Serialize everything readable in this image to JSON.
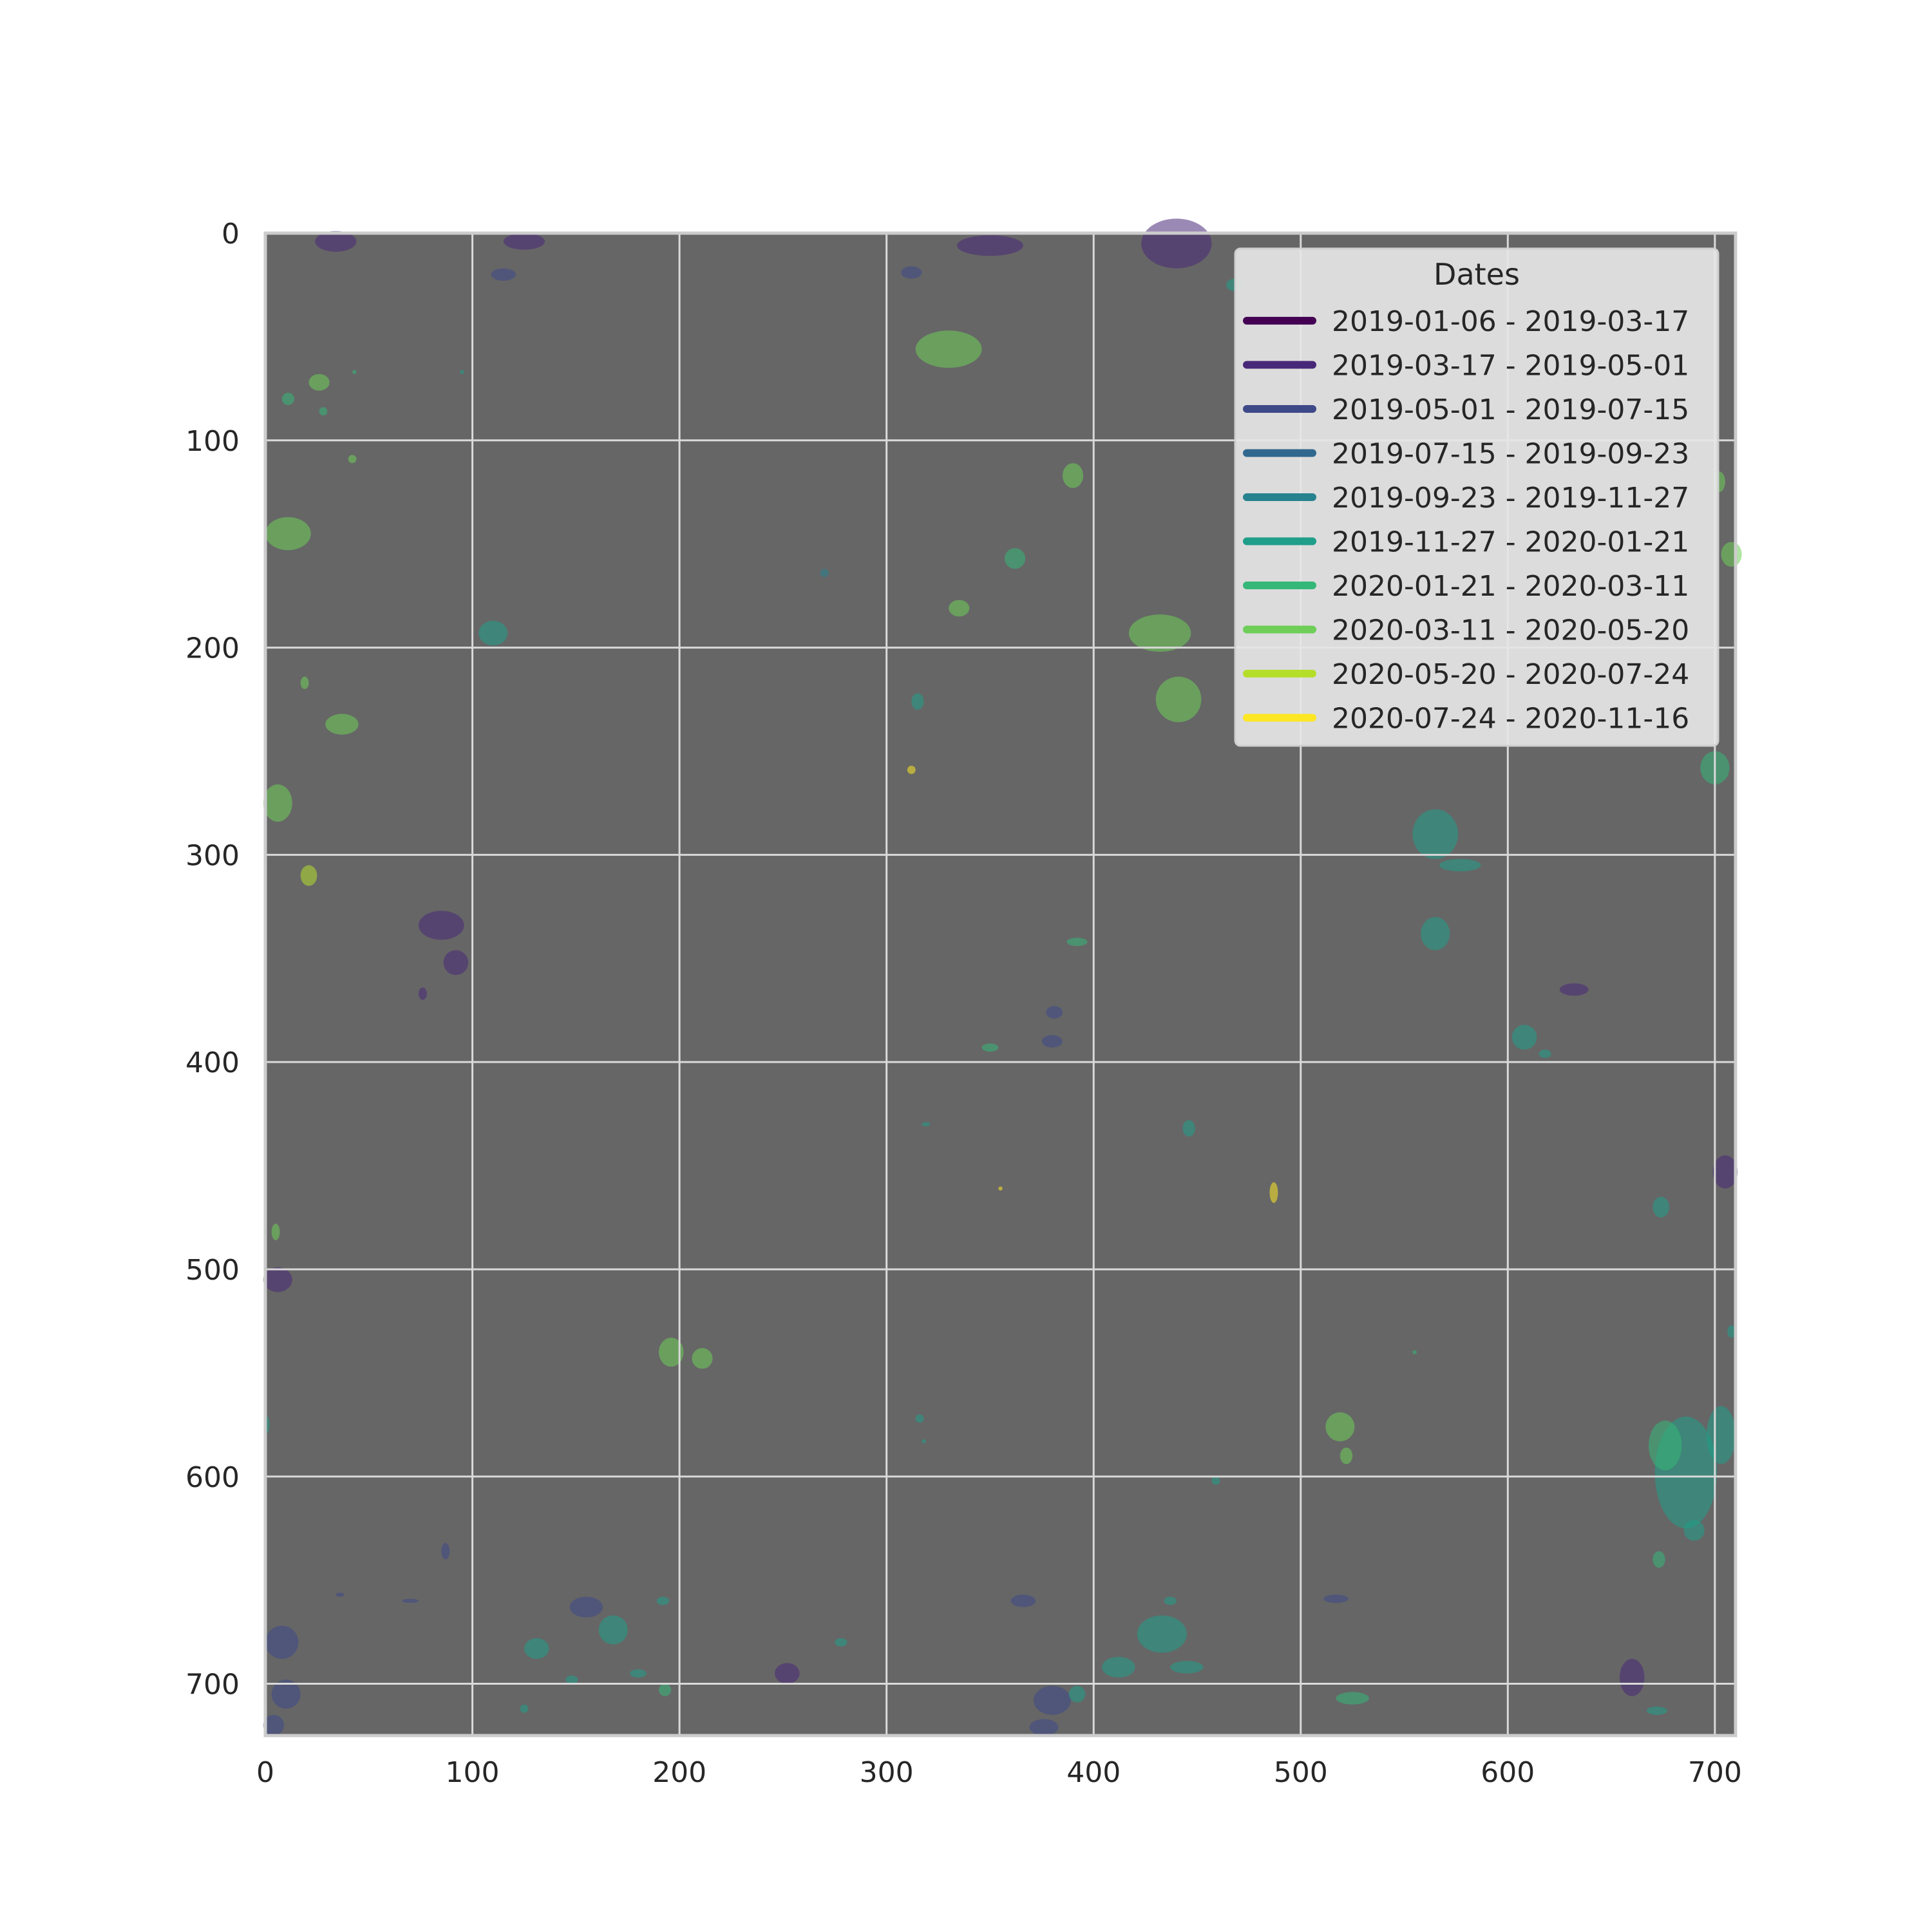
{
  "chart_data": {
    "type": "heatmap",
    "title": "",
    "xlabel": "",
    "ylabel": "",
    "xlim": [
      0,
      710
    ],
    "ylim": [
      725,
      0
    ],
    "x_ticks": [
      "0",
      "100",
      "200",
      "300",
      "400",
      "500",
      "600",
      "700"
    ],
    "y_ticks": [
      "0",
      "100",
      "200",
      "300",
      "400",
      "500",
      "600",
      "700"
    ],
    "grid": true,
    "background_color": "#666666",
    "legend": {
      "title": "Dates",
      "placement": "top-right",
      "entries": [
        {
          "label": "2019-01-06 - 2019-03-17",
          "color": "#440154"
        },
        {
          "label": "2019-03-17 - 2019-05-01",
          "color": "#482878"
        },
        {
          "label": "2019-05-01 - 2019-07-15",
          "color": "#3e4989"
        },
        {
          "label": "2019-07-15 - 2019-09-23",
          "color": "#31688e"
        },
        {
          "label": "2019-09-23 - 2019-11-27",
          "color": "#26828e"
        },
        {
          "label": "2019-11-27 - 2020-01-21",
          "color": "#1f9e89"
        },
        {
          "label": "2020-01-21 - 2020-03-11",
          "color": "#35b779"
        },
        {
          "label": "2020-03-11 - 2020-05-20",
          "color": "#6ece58"
        },
        {
          "label": "2020-05-20 - 2020-07-24",
          "color": "#b5de2b"
        },
        {
          "label": "2020-07-24 - 2020-11-16",
          "color": "#fde725"
        }
      ]
    },
    "patches": [
      {
        "x": 440,
        "y": 5,
        "rx": 17,
        "ry": 12,
        "cls": 1
      },
      {
        "x": 34,
        "y": 4,
        "rx": 10,
        "ry": 5,
        "cls": 1
      },
      {
        "x": 125,
        "y": 4,
        "rx": 10,
        "ry": 4,
        "cls": 1
      },
      {
        "x": 115,
        "y": 20,
        "rx": 6,
        "ry": 3,
        "cls": 2
      },
      {
        "x": 350,
        "y": 6,
        "rx": 16,
        "ry": 5,
        "cls": 1
      },
      {
        "x": 312,
        "y": 19,
        "rx": 5,
        "ry": 3,
        "cls": 2
      },
      {
        "x": 330,
        "y": 56,
        "rx": 16,
        "ry": 9,
        "cls": 7
      },
      {
        "x": 26,
        "y": 72,
        "rx": 5,
        "ry": 4,
        "cls": 7
      },
      {
        "x": 11,
        "y": 80,
        "rx": 3,
        "ry": 3,
        "cls": 6
      },
      {
        "x": 28,
        "y": 86,
        "rx": 2,
        "ry": 2,
        "cls": 6
      },
      {
        "x": 42,
        "y": 109,
        "rx": 2,
        "ry": 2,
        "cls": 7
      },
      {
        "x": 390,
        "y": 117,
        "rx": 5,
        "ry": 6,
        "cls": 7
      },
      {
        "x": 11,
        "y": 145,
        "rx": 11,
        "ry": 8,
        "cls": 7
      },
      {
        "x": 362,
        "y": 157,
        "rx": 5,
        "ry": 5,
        "cls": 6
      },
      {
        "x": 270,
        "y": 164,
        "rx": 2,
        "ry": 2,
        "cls": 4
      },
      {
        "x": 335,
        "y": 181,
        "rx": 5,
        "ry": 4,
        "cls": 7
      },
      {
        "x": 110,
        "y": 193,
        "rx": 7,
        "ry": 6,
        "cls": 5
      },
      {
        "x": 432,
        "y": 193,
        "rx": 15,
        "ry": 9,
        "cls": 7
      },
      {
        "x": 441,
        "y": 225,
        "rx": 11,
        "ry": 11,
        "cls": 7
      },
      {
        "x": 19,
        "y": 217,
        "rx": 2,
        "ry": 3,
        "cls": 7
      },
      {
        "x": 37,
        "y": 237,
        "rx": 8,
        "ry": 5,
        "cls": 7
      },
      {
        "x": 315,
        "y": 226,
        "rx": 3,
        "ry": 4,
        "cls": 5
      },
      {
        "x": 312,
        "y": 259,
        "rx": 2,
        "ry": 2,
        "cls": 9
      },
      {
        "x": 6,
        "y": 275,
        "rx": 7,
        "ry": 9,
        "cls": 7
      },
      {
        "x": 21,
        "y": 310,
        "rx": 4,
        "ry": 5,
        "cls": 8
      },
      {
        "x": 85,
        "y": 334,
        "rx": 11,
        "ry": 7,
        "cls": 1
      },
      {
        "x": 92,
        "y": 352,
        "rx": 6,
        "ry": 6,
        "cls": 1
      },
      {
        "x": 76,
        "y": 367,
        "rx": 2,
        "ry": 3,
        "cls": 1
      },
      {
        "x": 392,
        "y": 342,
        "rx": 5,
        "ry": 2,
        "cls": 6
      },
      {
        "x": 381,
        "y": 376,
        "rx": 4,
        "ry": 3,
        "cls": 2
      },
      {
        "x": 380,
        "y": 390,
        "rx": 5,
        "ry": 3,
        "cls": 2
      },
      {
        "x": 350,
        "y": 393,
        "rx": 4,
        "ry": 2,
        "cls": 6
      },
      {
        "x": 319,
        "y": 430,
        "rx": 2,
        "ry": 1,
        "cls": 5
      },
      {
        "x": 446,
        "y": 432,
        "rx": 3,
        "ry": 4,
        "cls": 5
      },
      {
        "x": 487,
        "y": 463,
        "rx": 2,
        "ry": 5,
        "cls": 9
      },
      {
        "x": 355,
        "y": 461,
        "rx": 1,
        "ry": 1,
        "cls": 9
      },
      {
        "x": 6,
        "y": 505,
        "rx": 7,
        "ry": 6,
        "cls": 1
      },
      {
        "x": 5,
        "y": 482,
        "rx": 2,
        "ry": 4,
        "cls": 7
      },
      {
        "x": 196,
        "y": 540,
        "rx": 6,
        "ry": 7,
        "cls": 7
      },
      {
        "x": 211,
        "y": 543,
        "rx": 5,
        "ry": 5,
        "cls": 7
      },
      {
        "x": 316,
        "y": 572,
        "rx": 2,
        "ry": 2,
        "cls": 5
      },
      {
        "x": 318,
        "y": 583,
        "rx": 1,
        "ry": 1,
        "cls": 5
      },
      {
        "x": 519,
        "y": 576,
        "rx": 7,
        "ry": 7,
        "cls": 7
      },
      {
        "x": 522,
        "y": 590,
        "rx": 3,
        "ry": 4,
        "cls": 7
      },
      {
        "x": 459,
        "y": 602,
        "rx": 2,
        "ry": 2,
        "cls": 5
      },
      {
        "x": 87,
        "y": 636,
        "rx": 2,
        "ry": 4,
        "cls": 2
      },
      {
        "x": 8,
        "y": 680,
        "rx": 8,
        "ry": 8,
        "cls": 2
      },
      {
        "x": 10,
        "y": 705,
        "rx": 7,
        "ry": 7,
        "cls": 2
      },
      {
        "x": 4,
        "y": 720,
        "rx": 5,
        "ry": 5,
        "cls": 2
      },
      {
        "x": 155,
        "y": 663,
        "rx": 8,
        "ry": 5,
        "cls": 2
      },
      {
        "x": 168,
        "y": 674,
        "rx": 7,
        "ry": 7,
        "cls": 5
      },
      {
        "x": 131,
        "y": 683,
        "rx": 6,
        "ry": 5,
        "cls": 5
      },
      {
        "x": 148,
        "y": 698,
        "rx": 3,
        "ry": 2,
        "cls": 5
      },
      {
        "x": 180,
        "y": 695,
        "rx": 4,
        "ry": 2,
        "cls": 5
      },
      {
        "x": 192,
        "y": 660,
        "rx": 3,
        "ry": 2,
        "cls": 5
      },
      {
        "x": 193,
        "y": 703,
        "rx": 3,
        "ry": 3,
        "cls": 6
      },
      {
        "x": 125,
        "y": 712,
        "rx": 2,
        "ry": 2,
        "cls": 5
      },
      {
        "x": 252,
        "y": 695,
        "rx": 6,
        "ry": 5,
        "cls": 1
      },
      {
        "x": 278,
        "y": 680,
        "rx": 3,
        "ry": 2,
        "cls": 5
      },
      {
        "x": 366,
        "y": 660,
        "rx": 6,
        "ry": 3,
        "cls": 2
      },
      {
        "x": 433,
        "y": 676,
        "rx": 12,
        "ry": 9,
        "cls": 5
      },
      {
        "x": 445,
        "y": 692,
        "rx": 8,
        "ry": 3,
        "cls": 5
      },
      {
        "x": 437,
        "y": 660,
        "rx": 3,
        "ry": 2,
        "cls": 5
      },
      {
        "x": 412,
        "y": 692,
        "rx": 8,
        "ry": 5,
        "cls": 5
      },
      {
        "x": 380,
        "y": 708,
        "rx": 9,
        "ry": 7,
        "cls": 2
      },
      {
        "x": 376,
        "y": 721,
        "rx": 7,
        "ry": 4,
        "cls": 2
      },
      {
        "x": 392,
        "y": 705,
        "rx": 4,
        "ry": 4,
        "cls": 5
      },
      {
        "x": 517,
        "y": 659,
        "rx": 6,
        "ry": 2,
        "cls": 2
      },
      {
        "x": 525,
        "y": 707,
        "rx": 8,
        "ry": 3,
        "cls": 6
      },
      {
        "x": 660,
        "y": 697,
        "rx": 6,
        "ry": 9,
        "cls": 1
      },
      {
        "x": 672,
        "y": 713,
        "rx": 5,
        "ry": 2,
        "cls": 5
      },
      {
        "x": 686,
        "y": 598,
        "rx": 15,
        "ry": 27,
        "cls": 5
      },
      {
        "x": 676,
        "y": 585,
        "rx": 8,
        "ry": 12,
        "cls": 6
      },
      {
        "x": 690,
        "y": 626,
        "rx": 5,
        "ry": 5,
        "cls": 5
      },
      {
        "x": 673,
        "y": 640,
        "rx": 3,
        "ry": 4,
        "cls": 6
      },
      {
        "x": 703,
        "y": 580,
        "rx": 7,
        "ry": 14,
        "cls": 5
      },
      {
        "x": 674,
        "y": 470,
        "rx": 4,
        "ry": 5,
        "cls": 5
      },
      {
        "x": 705,
        "y": 453,
        "rx": 6,
        "ry": 8,
        "cls": 1
      },
      {
        "x": 700,
        "y": 258,
        "rx": 7,
        "ry": 8,
        "cls": 6
      },
      {
        "x": 565,
        "y": 290,
        "rx": 11,
        "ry": 12,
        "cls": 5
      },
      {
        "x": 577,
        "y": 305,
        "rx": 10,
        "ry": 3,
        "cls": 5
      },
      {
        "x": 565,
        "y": 338,
        "rx": 7,
        "ry": 8,
        "cls": 5
      },
      {
        "x": 608,
        "y": 388,
        "rx": 6,
        "ry": 6,
        "cls": 5
      },
      {
        "x": 618,
        "y": 396,
        "rx": 3,
        "ry": 2,
        "cls": 5
      },
      {
        "x": 632,
        "y": 365,
        "rx": 7,
        "ry": 3,
        "cls": 1
      },
      {
        "x": 708,
        "y": 155,
        "rx": 5,
        "ry": 6,
        "cls": 7
      },
      {
        "x": 702,
        "y": 120,
        "rx": 3,
        "ry": 5,
        "cls": 7
      },
      {
        "x": 468,
        "y": 25,
        "rx": 4,
        "ry": 3,
        "cls": 5
      },
      {
        "x": 43,
        "y": 67,
        "rx": 1,
        "ry": 1,
        "cls": 6
      },
      {
        "x": 95,
        "y": 67,
        "rx": 1,
        "ry": 1,
        "cls": 5
      },
      {
        "x": 36,
        "y": 657,
        "rx": 2,
        "ry": 1,
        "cls": 2
      },
      {
        "x": 70,
        "y": 660,
        "rx": 4,
        "ry": 1,
        "cls": 2
      },
      {
        "x": 1,
        "y": 575,
        "rx": 1,
        "ry": 4,
        "cls": 5
      },
      {
        "x": 708,
        "y": 530,
        "rx": 2,
        "ry": 3,
        "cls": 5
      },
      {
        "x": 555,
        "y": 540,
        "rx": 1,
        "ry": 1,
        "cls": 6
      }
    ]
  }
}
